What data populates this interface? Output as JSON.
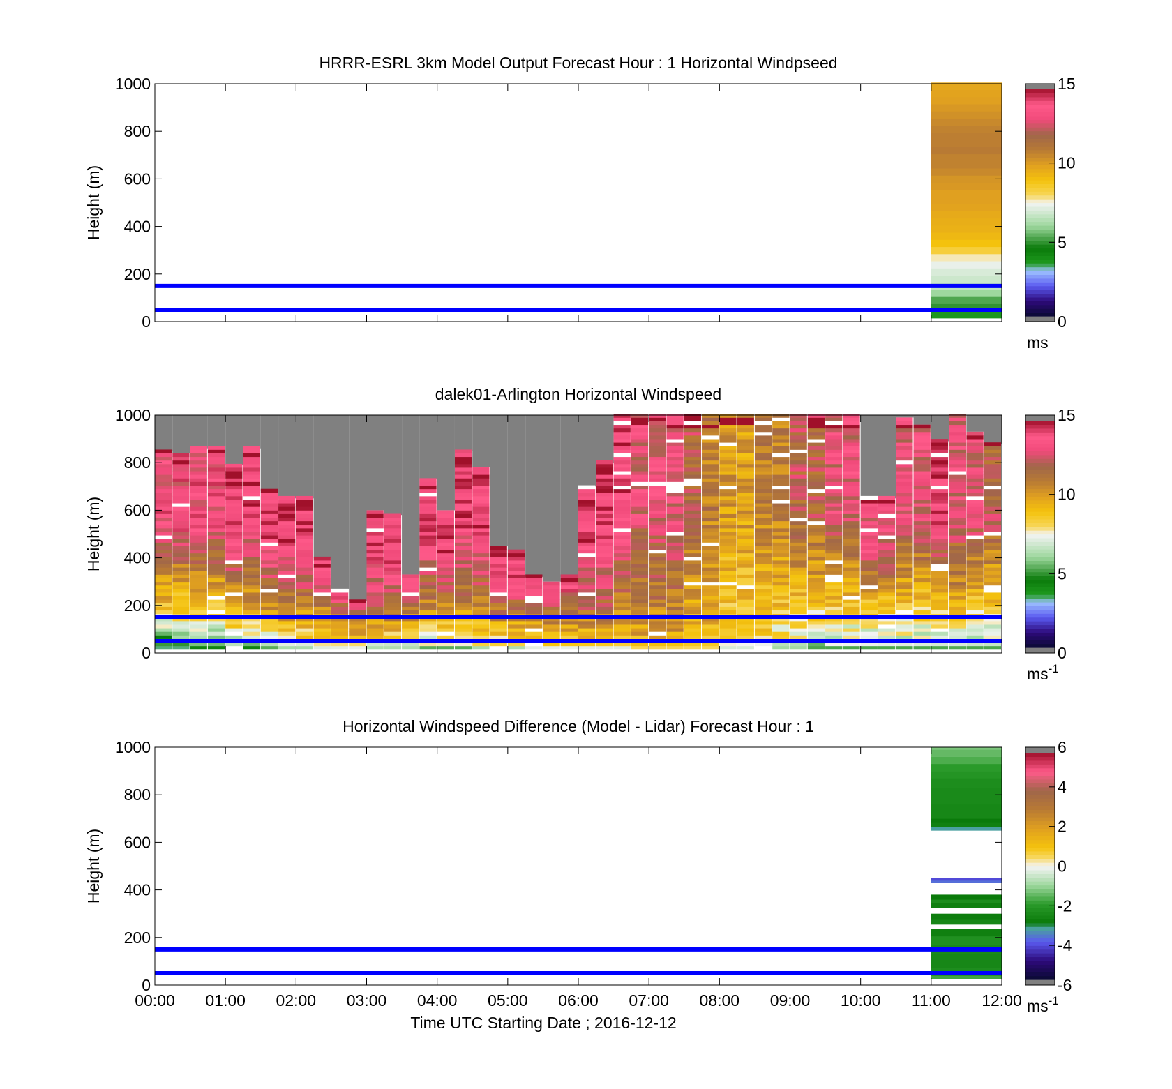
{
  "chart_data": [
    {
      "type": "heatmap",
      "title": "HRRR-ESRL 3km Model Output   Forecast Hour : 1 Horizontal Windpseed",
      "ylabel": "Height (m)",
      "xlabel": "",
      "ylim": [
        0,
        1000
      ],
      "yticks": [
        "0",
        "200",
        "400",
        "600",
        "800",
        "1000"
      ],
      "xlim": [
        "00:00",
        "12:00"
      ],
      "xticks": [
        "00:00",
        "01:00",
        "02:00",
        "03:00",
        "04:00",
        "05:00",
        "06:00",
        "07:00",
        "08:00",
        "09:00",
        "10:00",
        "11:00",
        "12:00"
      ],
      "show_xtick_labels": false,
      "colorbar": {
        "range": [
          0,
          15
        ],
        "ticks": [
          "0",
          "5",
          "10",
          "15"
        ],
        "unit": "ms",
        "unit_sup": "",
        "scale": "speed"
      },
      "reference_lines": [
        {
          "y": 150,
          "color": "#0000ff"
        },
        {
          "y": 50,
          "color": "#0000ff"
        }
      ],
      "columns": [
        {
          "x_start": "11:00",
          "x_end": "12:00",
          "heights": [
            30,
            60,
            90,
            120,
            150,
            180,
            210,
            240,
            270,
            300,
            330,
            360,
            390,
            420,
            450,
            480,
            510,
            540,
            570,
            600,
            630,
            660,
            690,
            720,
            750,
            780,
            810,
            840,
            870,
            900,
            930,
            960,
            990
          ],
          "values": [
            3.6,
            4.9,
            5.2,
            6.0,
            6.6,
            6.8,
            7.0,
            7.3,
            7.7,
            8.4,
            9.0,
            9.3,
            9.5,
            9.6,
            9.7,
            9.9,
            10.0,
            10.0,
            10.2,
            10.3,
            10.6,
            10.8,
            10.8,
            11.0,
            10.9,
            10.9,
            10.8,
            10.6,
            10.4,
            10.2,
            10.0,
            9.9,
            9.8
          ]
        }
      ]
    },
    {
      "type": "heatmap",
      "title": "dalek01-Arlington  Horizontal Windspeed",
      "ylabel": "Height (m)",
      "xlabel": "",
      "ylim": [
        0,
        1000
      ],
      "yticks": [
        "0",
        "200",
        "400",
        "600",
        "800",
        "1000"
      ],
      "xlim": [
        "00:00",
        "12:00"
      ],
      "xticks": [
        "00:00",
        "01:00",
        "02:00",
        "03:00",
        "04:00",
        "05:00",
        "06:00",
        "07:00",
        "08:00",
        "09:00",
        "10:00",
        "11:00",
        "12:00"
      ],
      "show_xtick_labels": false,
      "colorbar": {
        "range": [
          0,
          15
        ],
        "ticks": [
          "0",
          "5",
          "10",
          "15"
        ],
        "unit": "ms",
        "unit_sup": "-1",
        "scale": "speed"
      },
      "reference_lines": [
        {
          "y": 150,
          "color": "#0000ff"
        },
        {
          "y": 50,
          "color": "#0000ff"
        }
      ],
      "column_interval_minutes": 15,
      "bins": [
        {
          "top_height": 850,
          "bot": 4,
          "mid": 9,
          "high": 13.5
        },
        {
          "top_height": 840,
          "bot": 4,
          "mid": 9,
          "high": 13.5
        },
        {
          "top_height": 860,
          "bot": 5,
          "mid": 9,
          "high": 13.5
        },
        {
          "top_height": 870,
          "bot": 5,
          "mid": 9,
          "high": 13.5
        },
        {
          "top_height": 790,
          "bot": 6,
          "mid": 10,
          "high": 14
        },
        {
          "top_height": 860,
          "bot": 5,
          "mid": 10,
          "high": 14
        },
        {
          "top_height": 680,
          "bot": 6,
          "mid": 11,
          "high": 14
        },
        {
          "top_height": 650,
          "bot": 7,
          "mid": 11,
          "high": 14
        },
        {
          "top_height": 650,
          "bot": 7,
          "mid": 11,
          "high": 14
        },
        {
          "top_height": 400,
          "bot": 8,
          "mid": 11,
          "high": 14
        },
        {
          "top_height": 270,
          "bot": 8,
          "mid": 12,
          "high": 14
        },
        {
          "top_height": 220,
          "bot": 8,
          "mid": 13,
          "high": 14
        },
        {
          "top_height": 600,
          "bot": 7,
          "mid": 12,
          "high": 14
        },
        {
          "top_height": 580,
          "bot": 7,
          "mid": 12,
          "high": 14
        },
        {
          "top_height": 330,
          "bot": 7,
          "mid": 12,
          "high": 14
        },
        {
          "top_height": 730,
          "bot": 6,
          "mid": 11,
          "high": 14
        },
        {
          "top_height": 600,
          "bot": 6,
          "mid": 11,
          "high": 14
        },
        {
          "top_height": 850,
          "bot": 6,
          "mid": 11,
          "high": 14
        },
        {
          "top_height": 780,
          "bot": 7,
          "mid": 11,
          "high": 14
        },
        {
          "top_height": 450,
          "bot": 7,
          "mid": 12,
          "high": 14
        },
        {
          "top_height": 430,
          "bot": 7,
          "mid": 12,
          "high": 14
        },
        {
          "top_height": 320,
          "bot": 8,
          "mid": 12,
          "high": 14
        },
        {
          "top_height": 300,
          "bot": 8,
          "mid": 12,
          "high": 14
        },
        {
          "top_height": 320,
          "bot": 8,
          "mid": 12,
          "high": 14
        },
        {
          "top_height": 700,
          "bot": 8,
          "mid": 12,
          "high": 14
        },
        {
          "top_height": 800,
          "bot": 8,
          "mid": 12,
          "high": 14
        },
        {
          "top_height": 1000,
          "bot": 8,
          "mid": 11,
          "high": 14
        },
        {
          "top_height": 1000,
          "bot": 9,
          "mid": 11,
          "high": 13
        },
        {
          "top_height": 1000,
          "bot": 9,
          "mid": 11,
          "high": 13
        },
        {
          "top_height": 1000,
          "bot": 9,
          "mid": 11,
          "high": 13
        },
        {
          "top_height": 1000,
          "bot": 9,
          "mid": 10,
          "high": 12
        },
        {
          "top_height": 1000,
          "bot": 9,
          "mid": 10,
          "high": 11
        },
        {
          "top_height": 1000,
          "bot": 8,
          "mid": 9,
          "high": 10
        },
        {
          "top_height": 1000,
          "bot": 8,
          "mid": 9,
          "high": 10
        },
        {
          "top_height": 1000,
          "bot": 8,
          "mid": 9,
          "high": 11
        },
        {
          "top_height": 1000,
          "bot": 7,
          "mid": 9,
          "high": 11
        },
        {
          "top_height": 1000,
          "bot": 7,
          "mid": 9,
          "high": 12
        },
        {
          "top_height": 1000,
          "bot": 6,
          "mid": 9,
          "high": 12
        },
        {
          "top_height": 1000,
          "bot": 6,
          "mid": 9,
          "high": 13
        },
        {
          "top_height": 1000,
          "bot": 6,
          "mid": 9,
          "high": 13
        },
        {
          "top_height": 660,
          "bot": 6,
          "mid": 9,
          "high": 13
        },
        {
          "top_height": 650,
          "bot": 6,
          "mid": 9,
          "high": 13
        },
        {
          "top_height": 990,
          "bot": 6,
          "mid": 9,
          "high": 13
        },
        {
          "top_height": 960,
          "bot": 6,
          "mid": 9,
          "high": 13
        },
        {
          "top_height": 890,
          "bot": 6,
          "mid": 9,
          "high": 14
        },
        {
          "top_height": 1000,
          "bot": 6,
          "mid": 10,
          "high": 13
        },
        {
          "top_height": 930,
          "bot": 6,
          "mid": 9,
          "high": 13
        },
        {
          "top_height": 880,
          "bot": 6,
          "mid": 9,
          "high": 12
        }
      ]
    },
    {
      "type": "heatmap",
      "title": "Horizontal Windspeed Difference (Model - Lidar) Forecast Hour : 1",
      "ylabel": "Height (m)",
      "xlabel": "Time UTC  Starting Date ; 2016-12-12",
      "ylim": [
        0,
        1000
      ],
      "yticks": [
        "0",
        "200",
        "400",
        "600",
        "800",
        "1000"
      ],
      "xlim": [
        "00:00",
        "12:00"
      ],
      "xticks": [
        "00:00",
        "01:00",
        "02:00",
        "03:00",
        "04:00",
        "05:00",
        "06:00",
        "07:00",
        "08:00",
        "09:00",
        "10:00",
        "11:00",
        "12:00"
      ],
      "show_xtick_labels": true,
      "colorbar": {
        "range": [
          -6,
          6
        ],
        "ticks": [
          "-6",
          "-4",
          "-2",
          "0",
          "2",
          "4",
          "6"
        ],
        "unit": "ms",
        "unit_sup": "-1",
        "scale": "diff"
      },
      "reference_lines": [
        {
          "y": 150,
          "color": "#0000ff"
        },
        {
          "y": 50,
          "color": "#0000ff"
        }
      ],
      "columns": [
        {
          "x_start": "11:00",
          "x_end": "12:00",
          "bands": [
            {
              "y0": 25,
              "y1": 40,
              "value": -1.8
            },
            {
              "y0": 40,
              "y1": 70,
              "value": -2.4
            },
            {
              "y0": 70,
              "y1": 130,
              "value": -2.6
            },
            {
              "y0": 130,
              "y1": 170,
              "value": -2.5
            },
            {
              "y0": 170,
              "y1": 205,
              "value": -2.3
            },
            {
              "y0": 205,
              "y1": 235,
              "value": -2.8
            },
            {
              "y0": 255,
              "y1": 275,
              "value": -2.6
            },
            {
              "y0": 275,
              "y1": 300,
              "value": -2.9
            },
            {
              "y0": 325,
              "y1": 345,
              "value": -2.8
            },
            {
              "y0": 345,
              "y1": 360,
              "value": -2.4
            },
            {
              "y0": 360,
              "y1": 380,
              "value": -3.0
            },
            {
              "y0": 430,
              "y1": 440,
              "value": -3.8
            },
            {
              "y0": 440,
              "y1": 450,
              "value": -4.2
            },
            {
              "y0": 650,
              "y1": 665,
              "value": -3.3
            },
            {
              "y0": 665,
              "y1": 685,
              "value": -2.8
            },
            {
              "y0": 685,
              "y1": 700,
              "value": -3.0
            },
            {
              "y0": 700,
              "y1": 760,
              "value": -2.6
            },
            {
              "y0": 760,
              "y1": 830,
              "value": -2.5
            },
            {
              "y0": 830,
              "y1": 870,
              "value": -2.4
            },
            {
              "y0": 870,
              "y1": 900,
              "value": -2.2
            },
            {
              "y0": 900,
              "y1": 930,
              "value": -2.0
            },
            {
              "y0": 930,
              "y1": 960,
              "value": -1.7
            },
            {
              "y0": 960,
              "y1": 990,
              "value": -1.5
            },
            {
              "y0": 990,
              "y1": 1000,
              "value": -1.3
            }
          ]
        }
      ]
    }
  ]
}
